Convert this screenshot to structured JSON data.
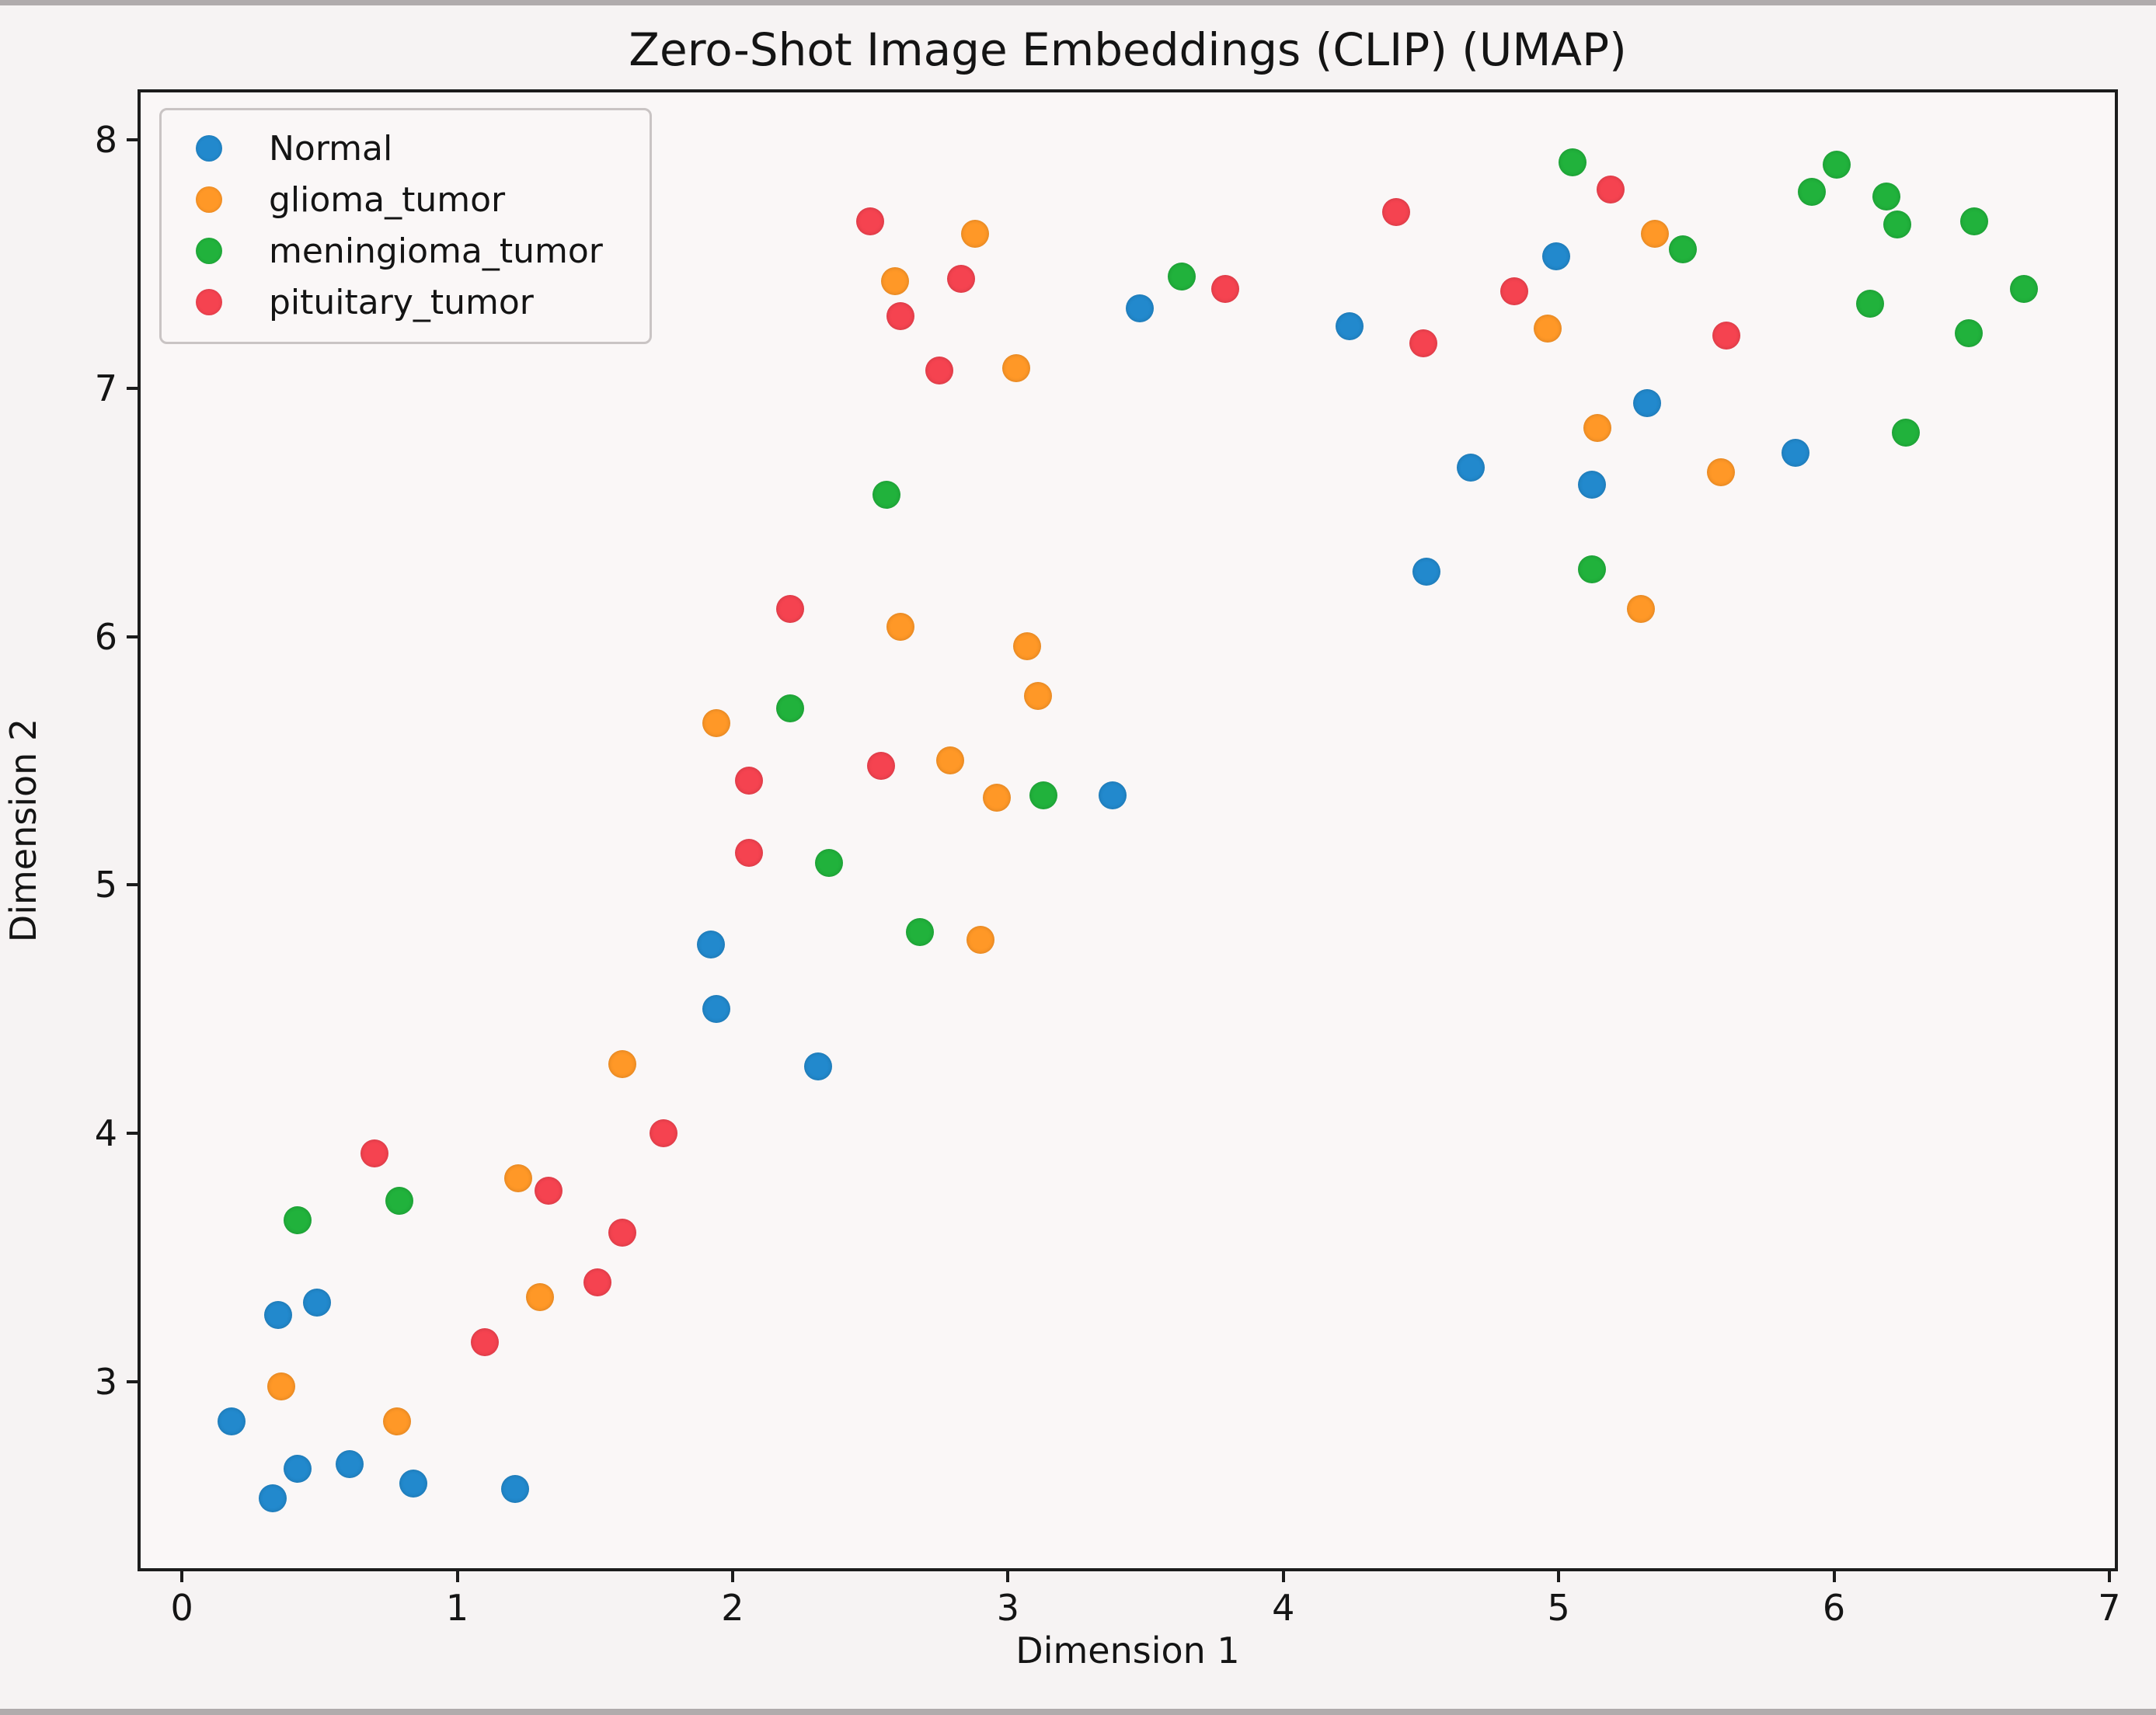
{
  "figure": {
    "background": "#f6f3f3",
    "axes_background": "#faf7f7",
    "spine_color": "#1c1c1c"
  },
  "chart_data": {
    "type": "scatter",
    "title": "Zero-Shot Image Embeddings (CLIP) (UMAP)",
    "xlabel": "Dimension 1",
    "ylabel": "Dimension 2",
    "xlim": [
      -0.15,
      7.02
    ],
    "ylim": [
      2.25,
      8.19
    ],
    "xticks": [
      0,
      1,
      2,
      3,
      4,
      5,
      6,
      7
    ],
    "yticks": [
      3,
      4,
      5,
      6,
      7,
      8
    ],
    "grid": false,
    "legend_position": "upper left",
    "marker_diameter_px": 36,
    "series": [
      {
        "name": "Normal",
        "color": "#2289cd",
        "points": [
          [
            0.18,
            2.84
          ],
          [
            0.33,
            2.53
          ],
          [
            0.35,
            3.27
          ],
          [
            0.42,
            2.65
          ],
          [
            0.49,
            3.32
          ],
          [
            0.61,
            2.67
          ],
          [
            0.84,
            2.59
          ],
          [
            1.21,
            2.57
          ],
          [
            1.92,
            4.76
          ],
          [
            1.94,
            4.5
          ],
          [
            2.31,
            4.27
          ],
          [
            3.38,
            5.36
          ],
          [
            3.48,
            7.32
          ],
          [
            4.24,
            7.25
          ],
          [
            4.52,
            6.26
          ],
          [
            4.68,
            6.68
          ],
          [
            4.99,
            7.53
          ],
          [
            5.12,
            6.61
          ],
          [
            5.32,
            6.94
          ],
          [
            5.86,
            6.74
          ]
        ]
      },
      {
        "name": "glioma_tumor",
        "color": "#ff9827",
        "points": [
          [
            0.36,
            2.98
          ],
          [
            0.78,
            2.84
          ],
          [
            1.22,
            3.82
          ],
          [
            1.3,
            3.34
          ],
          [
            1.6,
            4.28
          ],
          [
            1.94,
            5.65
          ],
          [
            2.59,
            7.43
          ],
          [
            2.61,
            6.04
          ],
          [
            2.79,
            5.5
          ],
          [
            2.88,
            7.62
          ],
          [
            2.9,
            4.78
          ],
          [
            2.96,
            5.35
          ],
          [
            3.03,
            7.08
          ],
          [
            3.07,
            5.96
          ],
          [
            3.11,
            5.76
          ],
          [
            4.96,
            7.24
          ],
          [
            5.14,
            6.84
          ],
          [
            5.3,
            6.11
          ],
          [
            5.35,
            7.62
          ],
          [
            5.59,
            6.66
          ]
        ]
      },
      {
        "name": "meningioma_tumor",
        "color": "#21b23c",
        "points": [
          [
            0.42,
            3.65
          ],
          [
            0.79,
            3.73
          ],
          [
            2.21,
            5.71
          ],
          [
            2.35,
            5.09
          ],
          [
            2.56,
            6.57
          ],
          [
            2.68,
            4.81
          ],
          [
            3.13,
            5.36
          ],
          [
            3.63,
            7.45
          ],
          [
            5.05,
            7.91
          ],
          [
            5.12,
            6.27
          ],
          [
            5.45,
            7.56
          ],
          [
            5.92,
            7.79
          ],
          [
            6.01,
            7.9
          ],
          [
            6.13,
            7.34
          ],
          [
            6.19,
            7.77
          ],
          [
            6.23,
            7.66
          ],
          [
            6.26,
            6.82
          ],
          [
            6.49,
            7.22
          ],
          [
            6.51,
            7.67
          ],
          [
            6.69,
            7.4
          ]
        ]
      },
      {
        "name": "pituitary_tumor",
        "color": "#f54350",
        "points": [
          [
            0.7,
            3.92
          ],
          [
            1.1,
            3.16
          ],
          [
            1.33,
            3.77
          ],
          [
            1.51,
            3.4
          ],
          [
            1.6,
            3.6
          ],
          [
            1.75,
            4.0
          ],
          [
            2.06,
            5.42
          ],
          [
            2.06,
            5.13
          ],
          [
            2.21,
            6.11
          ],
          [
            2.5,
            7.67
          ],
          [
            2.54,
            5.48
          ],
          [
            2.61,
            7.29
          ],
          [
            2.75,
            7.07
          ],
          [
            2.83,
            7.44
          ],
          [
            3.79,
            7.4
          ],
          [
            4.41,
            7.71
          ],
          [
            4.51,
            7.18
          ],
          [
            4.84,
            7.39
          ],
          [
            5.19,
            7.8
          ],
          [
            5.61,
            7.21
          ]
        ]
      }
    ]
  }
}
